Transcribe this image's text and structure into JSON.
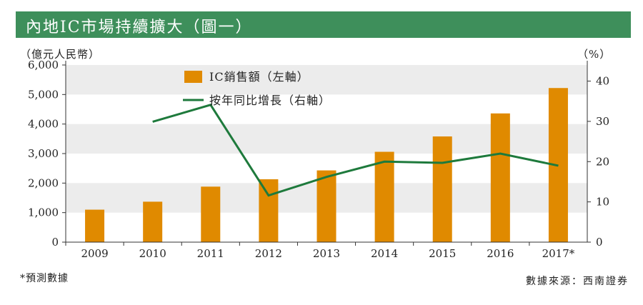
{
  "title": "內地IC市場持續擴大（圖一）",
  "left_unit": "（億元人民幣）",
  "right_unit": "（%）",
  "footnote": "*預測數據",
  "source": "數據來源：西南證券",
  "colors": {
    "title_bg": "#3e8f5b",
    "bar": "#e08a00",
    "line": "#1e7a3c",
    "band": "#ececec"
  },
  "chart_data": {
    "type": "bar+line",
    "categories": [
      "2009",
      "2010",
      "2011",
      "2012",
      "2013",
      "2014",
      "2015",
      "2016",
      "2017*"
    ],
    "series": [
      {
        "name": "IC銷售額（左軸）",
        "type": "bar",
        "axis": "left",
        "values": [
          1100,
          1370,
          1880,
          2130,
          2430,
          3060,
          3580,
          4360,
          5220
        ]
      },
      {
        "name": "按年同比增長（右軸）",
        "type": "line",
        "axis": "right",
        "values": [
          null,
          29.9,
          34.1,
          11.6,
          16.2,
          20.0,
          19.7,
          22.0,
          19.0
        ]
      }
    ],
    "left_axis": {
      "ylim": [
        0,
        6000
      ],
      "ticks": [
        "0",
        "1,000",
        "2,000",
        "3,000",
        "4,000",
        "5,000",
        "6,000"
      ],
      "tick_values": [
        0,
        1000,
        2000,
        3000,
        4000,
        5000,
        6000
      ]
    },
    "right_axis": {
      "ylim": [
        0,
        44
      ],
      "ticks": [
        "0",
        "10",
        "20",
        "30",
        "40"
      ],
      "tick_values": [
        0,
        10,
        20,
        30,
        40
      ]
    },
    "alternating_bands": true,
    "legend_position": "top-left"
  }
}
